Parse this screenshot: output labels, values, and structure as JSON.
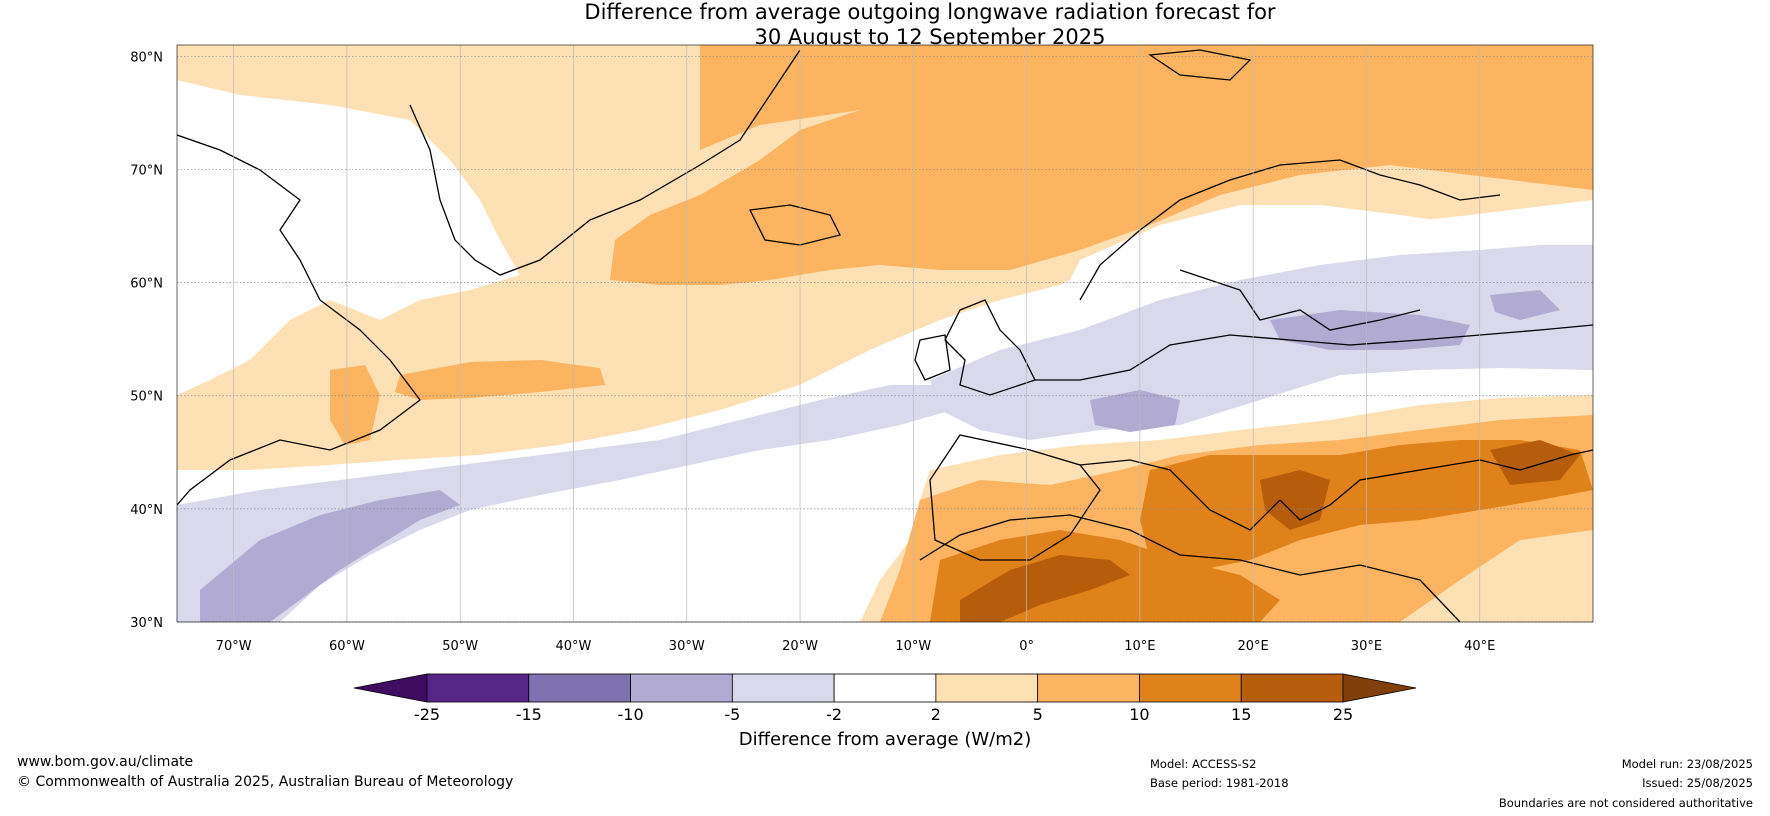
{
  "title_line1": "Difference from average outgoing longwave radiation forecast for",
  "title_line2": "30 August to 12 September 2025",
  "map": {
    "lat_labels": [
      "80°N",
      "70°N",
      "60°N",
      "50°N",
      "40°N",
      "30°N"
    ],
    "lon_labels": [
      "70°W",
      "60°W",
      "50°W",
      "40°W",
      "30°W",
      "20°W",
      "10°W",
      "0°",
      "10°E",
      "20°E",
      "30°E",
      "40°E"
    ],
    "lat_values": [
      80,
      70,
      60,
      50,
      40,
      30
    ],
    "lon_values": [
      -70,
      -60,
      -50,
      -40,
      -30,
      -20,
      -10,
      0,
      10,
      20,
      30,
      40
    ],
    "lon_range": [
      -75,
      50
    ],
    "lat_range": [
      30,
      81
    ]
  },
  "colorbar": {
    "tick_labels": [
      "-25",
      "-15",
      "-10",
      "-5",
      "-2",
      "2",
      "5",
      "10",
      "15",
      "25"
    ],
    "colors": [
      "#3f0c62",
      "#562585",
      "#7e73b0",
      "#b1aad3",
      "#d9d9eb",
      "#ffffff",
      "#fde0b4",
      "#fcb460",
      "#e0821a",
      "#b55d0a",
      "#803e08"
    ],
    "label": "Difference from average (W/m2)"
  },
  "footer": {
    "website": "www.bom.gov.au/climate",
    "copyright": "© Commonwealth of Australia 2025, Australian Bureau of Meteorology",
    "model": "Model: ACCESS-S2",
    "base_period": "Base period: 1981-2018",
    "model_run": "Model run: 23/08/2025",
    "issued": "Issued: 25/08/2025",
    "disclaimer": "Boundaries are not considered authoritative"
  }
}
